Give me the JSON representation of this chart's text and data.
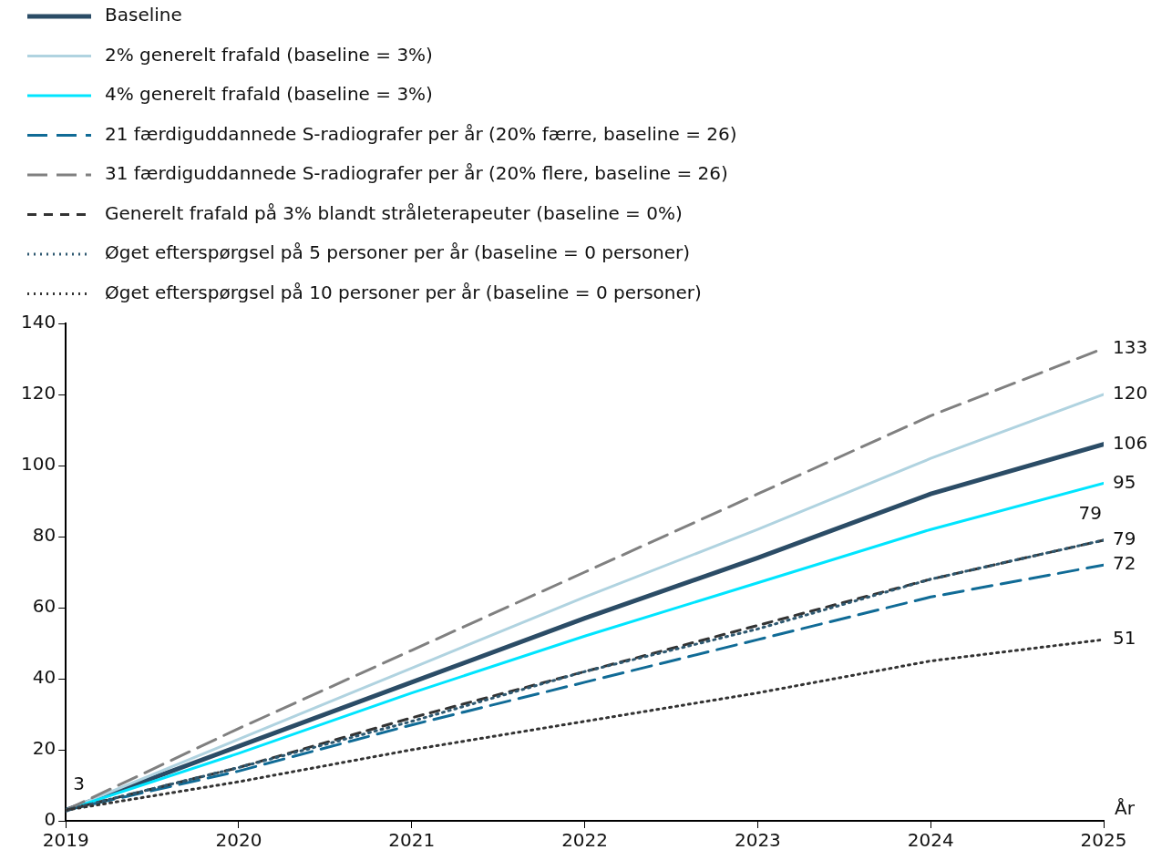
{
  "chart_data": {
    "type": "line",
    "xlabel": "År",
    "x": [
      2019,
      2020,
      2021,
      2022,
      2023,
      2024,
      2025
    ],
    "xlim": [
      2019,
      2025
    ],
    "xticks": [
      2019,
      2020,
      2021,
      2022,
      2023,
      2024,
      2025
    ],
    "ylim": [
      0,
      140
    ],
    "yticks": [
      0,
      20,
      40,
      60,
      80,
      100,
      120,
      140
    ],
    "grid": false,
    "legend": "top left",
    "marker": "none",
    "series": [
      {
        "name": "Baseline",
        "color": "#2b4c66",
        "line_style": "solid",
        "values": [
          3,
          21,
          39,
          57,
          74,
          92,
          106
        ],
        "value_labels": [
          "3",
          null,
          null,
          null,
          null,
          null,
          "106"
        ]
      },
      {
        "name": "2% generelt frafald (baseline = 3%)",
        "color": "#b0d3e0",
        "line_style": "solid",
        "values": [
          3,
          23,
          43,
          63,
          82,
          102,
          120
        ],
        "value_labels": [
          null,
          null,
          null,
          null,
          null,
          null,
          "120"
        ]
      },
      {
        "name": "4% generelt frafald (baseline = 3%)",
        "color": "#00e5ff",
        "line_style": "solid",
        "values": [
          3,
          19,
          36,
          52,
          67,
          82,
          95
        ],
        "value_labels": [
          null,
          null,
          null,
          null,
          null,
          null,
          "95"
        ]
      },
      {
        "name": "21 færdiguddannede S-radiografer per år (20% færre, baseline = 26)",
        "color": "#106b96",
        "line_style": "dashed",
        "values": [
          3,
          14,
          27,
          39,
          51,
          63,
          72
        ],
        "value_labels": [
          null,
          null,
          null,
          null,
          null,
          null,
          "72"
        ]
      },
      {
        "name": "31 færdiguddannede S-radiografer per år (20% flere, baseline = 26)",
        "color": "#808080",
        "line_style": "dashed",
        "values": [
          3,
          26,
          48,
          70,
          92,
          114,
          133
        ],
        "value_labels": [
          null,
          null,
          null,
          null,
          null,
          null,
          "133"
        ]
      },
      {
        "name": "Generelt frafald på 3% blandt stråleterapeuter (baseline = 0%)",
        "color": "#333333",
        "line_style": "dashed",
        "values": [
          3,
          15,
          29,
          42,
          55,
          68,
          79
        ],
        "value_labels": [
          null,
          null,
          null,
          null,
          null,
          null,
          "79"
        ]
      },
      {
        "name": "Øget efterspørgsel på 5 personer per år (baseline = 0 personer)",
        "color": "#2e5870",
        "line_style": "dotted",
        "values": [
          3,
          15,
          28,
          42,
          54,
          68,
          79
        ],
        "value_labels": [
          null,
          null,
          null,
          null,
          null,
          null,
          "79"
        ]
      },
      {
        "name": "Øget efterspørgsel på 10 personer per år (baseline = 0 personer)",
        "color": "#333333",
        "line_style": "dotted",
        "values": [
          3,
          11,
          20,
          28,
          36,
          45,
          51
        ],
        "value_labels": [
          null,
          null,
          null,
          null,
          null,
          null,
          "51"
        ]
      }
    ]
  }
}
